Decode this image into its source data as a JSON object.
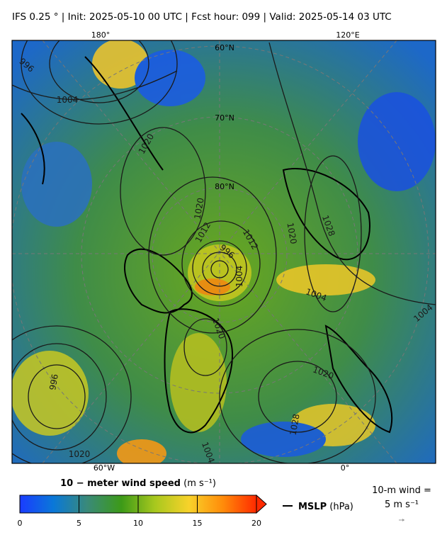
{
  "title": "IFS 0.25 °  |  Init: 2025-05-10 00 UTC  |  Fcst hour: 099  |  Valid: 2025-05-14 03 UTC",
  "map": {
    "lon_labels": [
      "180°",
      "120°E",
      "60°W",
      "0°"
    ],
    "lat_labels": [
      "60°N",
      "70°N",
      "80°N"
    ],
    "contour_labels": [
      "996",
      "1004",
      "1020",
      "1020",
      "1012",
      "996",
      "1012",
      "1004",
      "1020",
      "1028",
      "1004",
      "1020",
      "1004",
      "1020",
      "996",
      "1028",
      "1020",
      "1004"
    ]
  },
  "colorbar": {
    "label": "10 − meter wind speed",
    "unit": "(m s⁻¹)",
    "lim": [
      0,
      20
    ],
    "ticks": [
      0,
      5,
      10,
      15,
      20
    ],
    "colors": [
      "#1a3cff",
      "#0a78d8",
      "#3a8a78",
      "#3c9a18",
      "#a8c81e",
      "#f8d22a",
      "#ff8c0a",
      "#ff2a00"
    ]
  },
  "legend": {
    "mslp": "MSLP",
    "mslp_unit": "(hPa)"
  },
  "wind_key": {
    "line1": "10-m wind =",
    "line2": "5 m s⁻¹"
  }
}
